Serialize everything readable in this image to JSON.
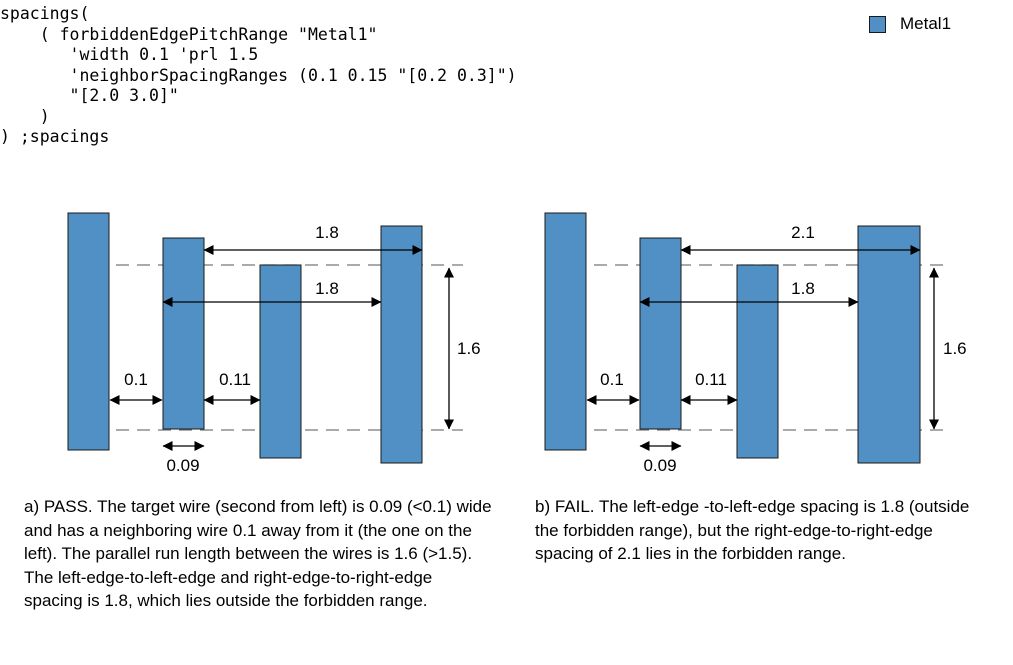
{
  "code": {
    "lines": [
      "spacings(",
      "    ( forbiddenEdgePitchRange \"Metal1\"",
      "       'width 0.1 'prl 1.5",
      "       'neighborSpacingRanges (0.1 0.15 \"[0.2 0.3]\")",
      "       \"[2.0 3.0]\"",
      "    )",
      ") ;spacings"
    ]
  },
  "legend": {
    "label": "Metal1",
    "color": "#5090c4"
  },
  "colors": {
    "wire": "#5090c4",
    "wire_border": "#1a1a1a",
    "highlight": "#e8101c",
    "dash": "#777777"
  },
  "panel_a": {
    "labels": {
      "top_pitch": "1.8",
      "mid_pitch": "1.8",
      "prl": "1.6",
      "spacing_left": "0.1",
      "spacing_mid": "0.11",
      "width": "0.09"
    },
    "caption": "a) PASS. The target wire (second from left) is 0.09 (<0.1) wide and has a neighboring wire 0.1 away from it (the one on the left). The parallel run length between the wires is 1.6 (>1.5). The left-edge-to-left-edge and right-edge-to-right-edge spacing is 1.8, which lies outside the forbidden range."
  },
  "panel_b": {
    "labels": {
      "top_pitch": "2.1",
      "mid_pitch": "1.8",
      "prl": "1.6",
      "spacing_left": "0.1",
      "spacing_mid": "0.11",
      "width": "0.09"
    },
    "caption": "b) FAIL. The left-edge -to-left-edge spacing is 1.8 (outside the forbidden range), but the right-edge-to-right-edge spacing of 2.1 lies in the forbidden range."
  }
}
